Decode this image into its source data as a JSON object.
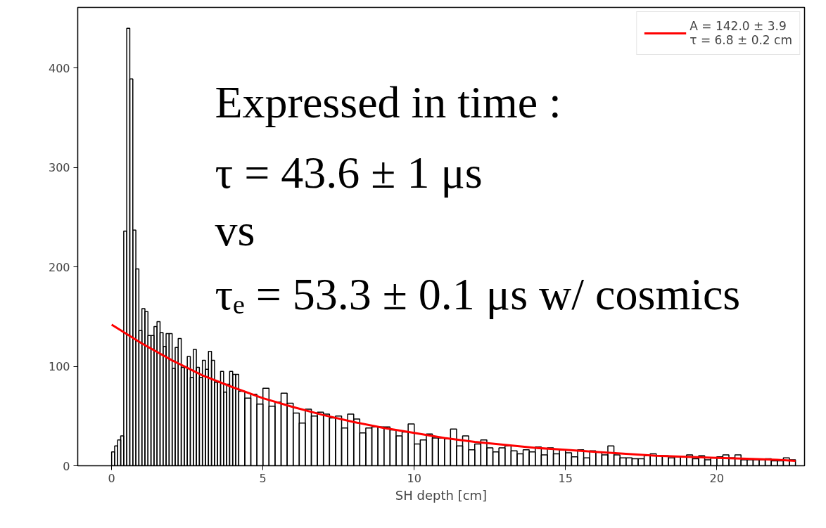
{
  "chart_data": {
    "type": "histogram",
    "xlabel": "SH depth [cm]",
    "xlim": [
      -1.12,
      22.9
    ],
    "ylim": [
      0,
      461
    ],
    "xticks": [
      0,
      5,
      10,
      15,
      20
    ],
    "yticks": [
      0,
      100,
      200,
      300,
      400
    ],
    "grid": false,
    "legend": "top right",
    "annotations": [
      "Expressed in time :",
      " τ = 43.6 ± 1 μs",
      "vs",
      "τₑ = 53.3 ± 0.1 μs w/ cosmics"
    ],
    "series": [
      {
        "color": "#000000",
        "bins": [
          0,
          0.1,
          0.2,
          0.3,
          0.4,
          0.5,
          0.6,
          0.7,
          0.8,
          0.9,
          1.0,
          1.1,
          1.2,
          1.3,
          1.4,
          1.5,
          1.6,
          1.7,
          1.8,
          1.9,
          2.0,
          2.1,
          2.2,
          2.3,
          2.4,
          2.5,
          2.6,
          2.7,
          2.8,
          2.9,
          3.0,
          3.1,
          3.2,
          3.3,
          3.4,
          3.5,
          3.6,
          3.7,
          3.8,
          3.9,
          4.0,
          4.1,
          4.2,
          4.4,
          4.6,
          4.8,
          5.0,
          5.2,
          5.4,
          5.6,
          5.8,
          6.0,
          6.2,
          6.4,
          6.6,
          6.8,
          7.0,
          7.2,
          7.4,
          7.6,
          7.8,
          8.0,
          8.2,
          8.4,
          8.6,
          8.8,
          9.0,
          9.2,
          9.4,
          9.6,
          9.8,
          10.0,
          10.2,
          10.4,
          10.6,
          10.8,
          11.0,
          11.2,
          11.4,
          11.6,
          11.8,
          12.0,
          12.2,
          12.4,
          12.6,
          12.8,
          13.0,
          13.2,
          13.4,
          13.6,
          13.8,
          14.0,
          14.2,
          14.4,
          14.6,
          14.8,
          15.0,
          15.2,
          15.4,
          15.6,
          15.8,
          16.0,
          16.2,
          16.4,
          16.6,
          16.8,
          17.0,
          17.2,
          17.4,
          17.6,
          17.8,
          18.0,
          18.2,
          18.4,
          18.6,
          18.8,
          19.0,
          19.2,
          19.4,
          19.6,
          19.8,
          20.0,
          20.2,
          20.4,
          20.6,
          20.8,
          21.0,
          21.2,
          21.4,
          21.6,
          21.8,
          22.0,
          22.2,
          22.4,
          22.6
        ],
        "values": [
          14,
          20,
          26,
          30,
          236,
          440,
          389,
          237,
          198,
          136,
          158,
          155,
          131,
          131,
          140,
          145,
          134,
          120,
          133,
          133,
          98,
          119,
          128,
          99,
          99,
          110,
          89,
          117,
          99,
          89,
          106,
          97,
          115,
          106,
          84,
          84,
          95,
          74,
          82,
          95,
          92,
          92,
          75,
          68,
          72,
          62,
          78,
          60,
          64,
          73,
          63,
          53,
          43,
          57,
          50,
          54,
          52,
          48,
          50,
          38,
          52,
          47,
          33,
          38,
          39,
          39,
          39,
          36,
          30,
          34,
          42,
          22,
          26,
          32,
          28,
          28,
          27,
          37,
          20,
          30,
          16,
          22,
          26,
          18,
          14,
          18,
          20,
          15,
          12,
          16,
          14,
          19,
          11,
          18,
          12,
          16,
          13,
          9,
          16,
          8,
          15,
          14,
          11,
          20,
          11,
          8,
          8,
          7,
          7,
          10,
          12,
          10,
          10,
          8,
          9,
          9,
          11,
          7,
          10,
          6,
          8,
          9,
          11,
          8,
          11,
          6,
          6,
          6,
          6,
          7,
          5,
          5,
          8,
          6
        ]
      },
      {
        "type": "line",
        "name": "A = 142.0 ± 3.9\nτ = 6.8 ± 0.2 cm",
        "color": "#ff0000",
        "x": [
          0,
          1,
          2,
          3,
          4,
          5,
          6,
          7,
          8,
          9,
          10,
          11,
          12,
          13,
          14,
          15,
          16,
          17,
          18,
          19,
          20,
          21,
          22,
          22.6
        ],
        "values": [
          142,
          123,
          106,
          91,
          79,
          68,
          59,
          51,
          44,
          38,
          33,
          28,
          24,
          21,
          18,
          16,
          14,
          12,
          10,
          9,
          8,
          7,
          6,
          5
        ]
      }
    ]
  }
}
